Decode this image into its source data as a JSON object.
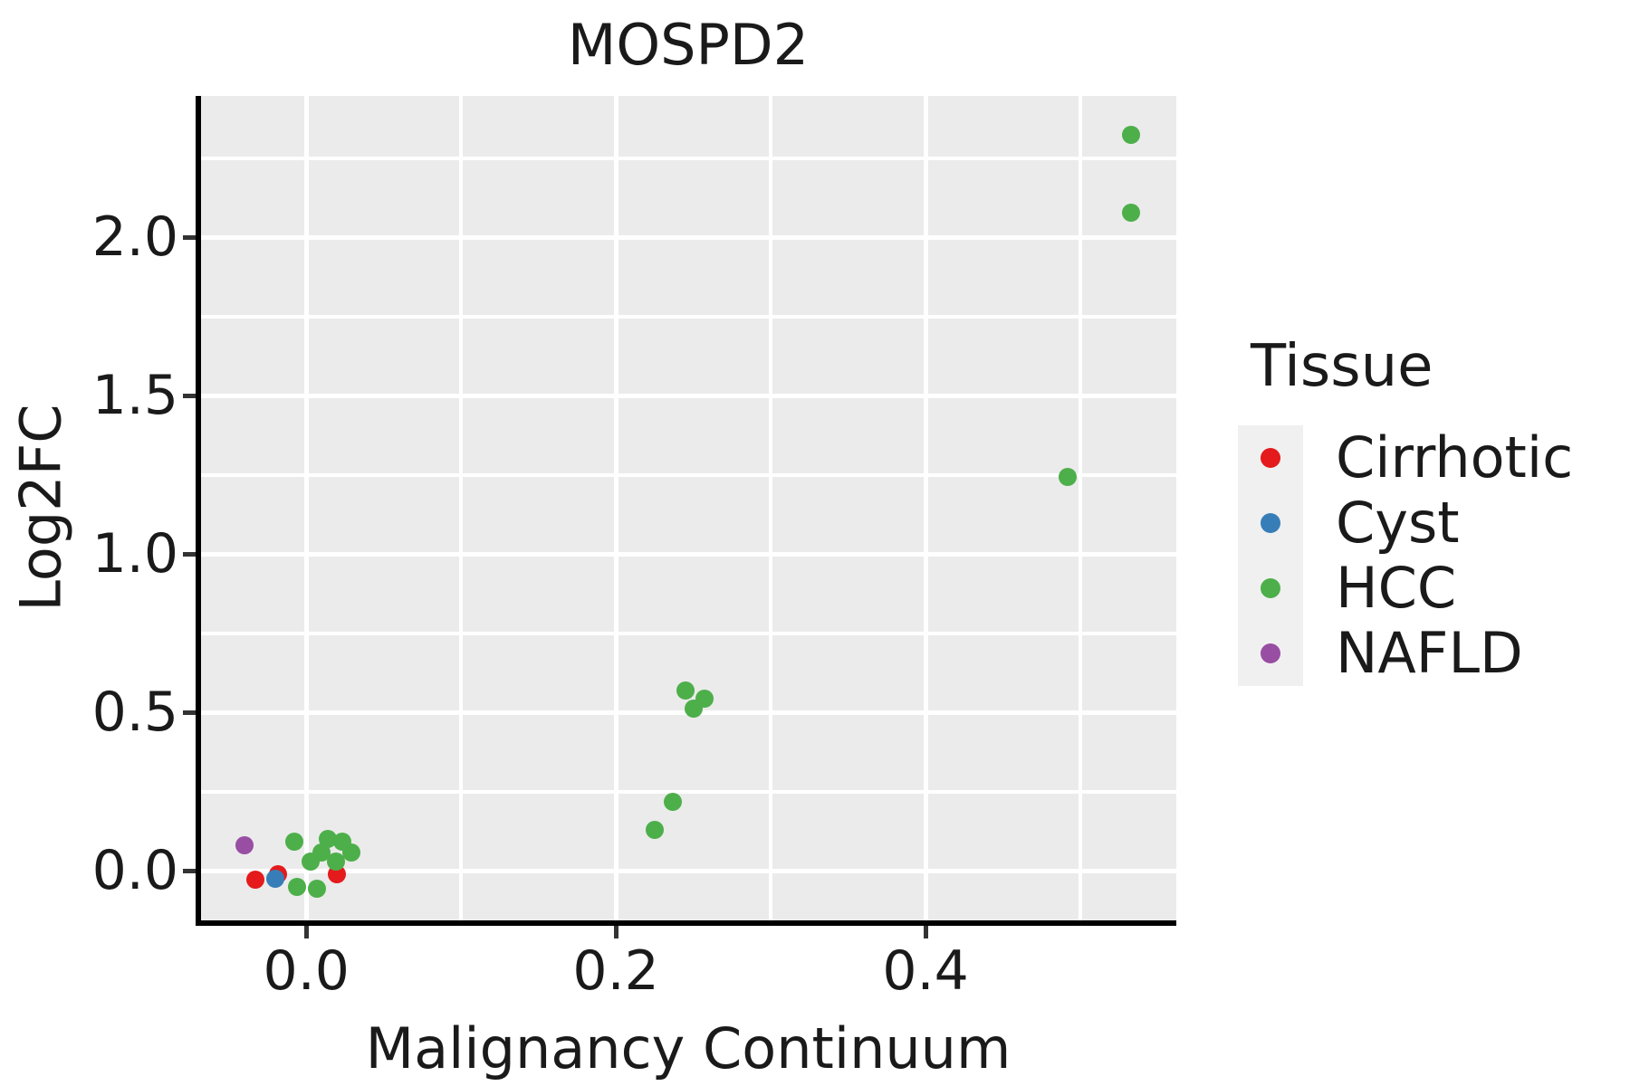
{
  "figure": {
    "title": "MOSPD2",
    "x_axis_label": "Malignancy Continuum",
    "y_axis_label": "Log2FC",
    "legend_title": "Tissue"
  },
  "colors": {
    "cirrhotic": "#E41A1C",
    "cyst": "#377EB8",
    "hcc": "#4DAF4A",
    "nafld": "#984EA3",
    "panel_background": "#EBEBEB",
    "legend_key_background": "#F0F0F0",
    "gridline": "#FFFFFF",
    "axis_line": "#000000",
    "tick_mark": "#333333",
    "text": "#1A1A1A"
  },
  "chart_data": {
    "type": "scatter",
    "title": "MOSPD2",
    "xlabel": "Malignancy Continuum",
    "ylabel": "Log2FC",
    "legend_title": "Tissue",
    "legend_position": "right",
    "grid": true,
    "xlim": [
      -0.068,
      0.562
    ],
    "ylim": [
      -0.157,
      2.446
    ],
    "x_ticks": [
      0.0,
      0.2,
      0.4
    ],
    "x_tick_labels": [
      "0.0",
      "0.2",
      "0.4"
    ],
    "x_minor_ticks": [
      0.1,
      0.3,
      0.5
    ],
    "y_ticks": [
      0.0,
      0.5,
      1.0,
      1.5,
      2.0
    ],
    "y_tick_labels": [
      "0.0",
      "0.5",
      "1.0",
      "1.5",
      "2.0"
    ],
    "y_minor_ticks": [
      0.25,
      0.75,
      1.25,
      1.75,
      2.25
    ],
    "series": [
      {
        "name": "Cirrhotic",
        "color": "#E41A1C",
        "points": [
          [
            -0.033,
            -0.029
          ],
          [
            -0.018,
            -0.011
          ],
          [
            0.02,
            -0.011
          ]
        ]
      },
      {
        "name": "Cyst",
        "color": "#377EB8",
        "points": [
          [
            -0.02,
            -0.026
          ]
        ]
      },
      {
        "name": "HCC",
        "color": "#4DAF4A",
        "points": [
          [
            -0.008,
            0.091
          ],
          [
            0.014,
            0.1
          ],
          [
            0.023,
            0.091
          ],
          [
            0.029,
            0.057
          ],
          [
            0.01,
            0.057
          ],
          [
            0.003,
            0.029
          ],
          [
            0.019,
            0.029
          ],
          [
            0.007,
            -0.057
          ],
          [
            -0.006,
            -0.051
          ],
          [
            0.225,
            0.129
          ],
          [
            0.237,
            0.217
          ],
          [
            0.245,
            0.569
          ],
          [
            0.257,
            0.543
          ],
          [
            0.25,
            0.511
          ],
          [
            0.492,
            1.243
          ],
          [
            0.533,
            2.077
          ],
          [
            0.533,
            2.323
          ]
        ]
      },
      {
        "name": "NAFLD",
        "color": "#984EA3",
        "points": [
          [
            -0.04,
            0.08
          ]
        ]
      }
    ]
  }
}
